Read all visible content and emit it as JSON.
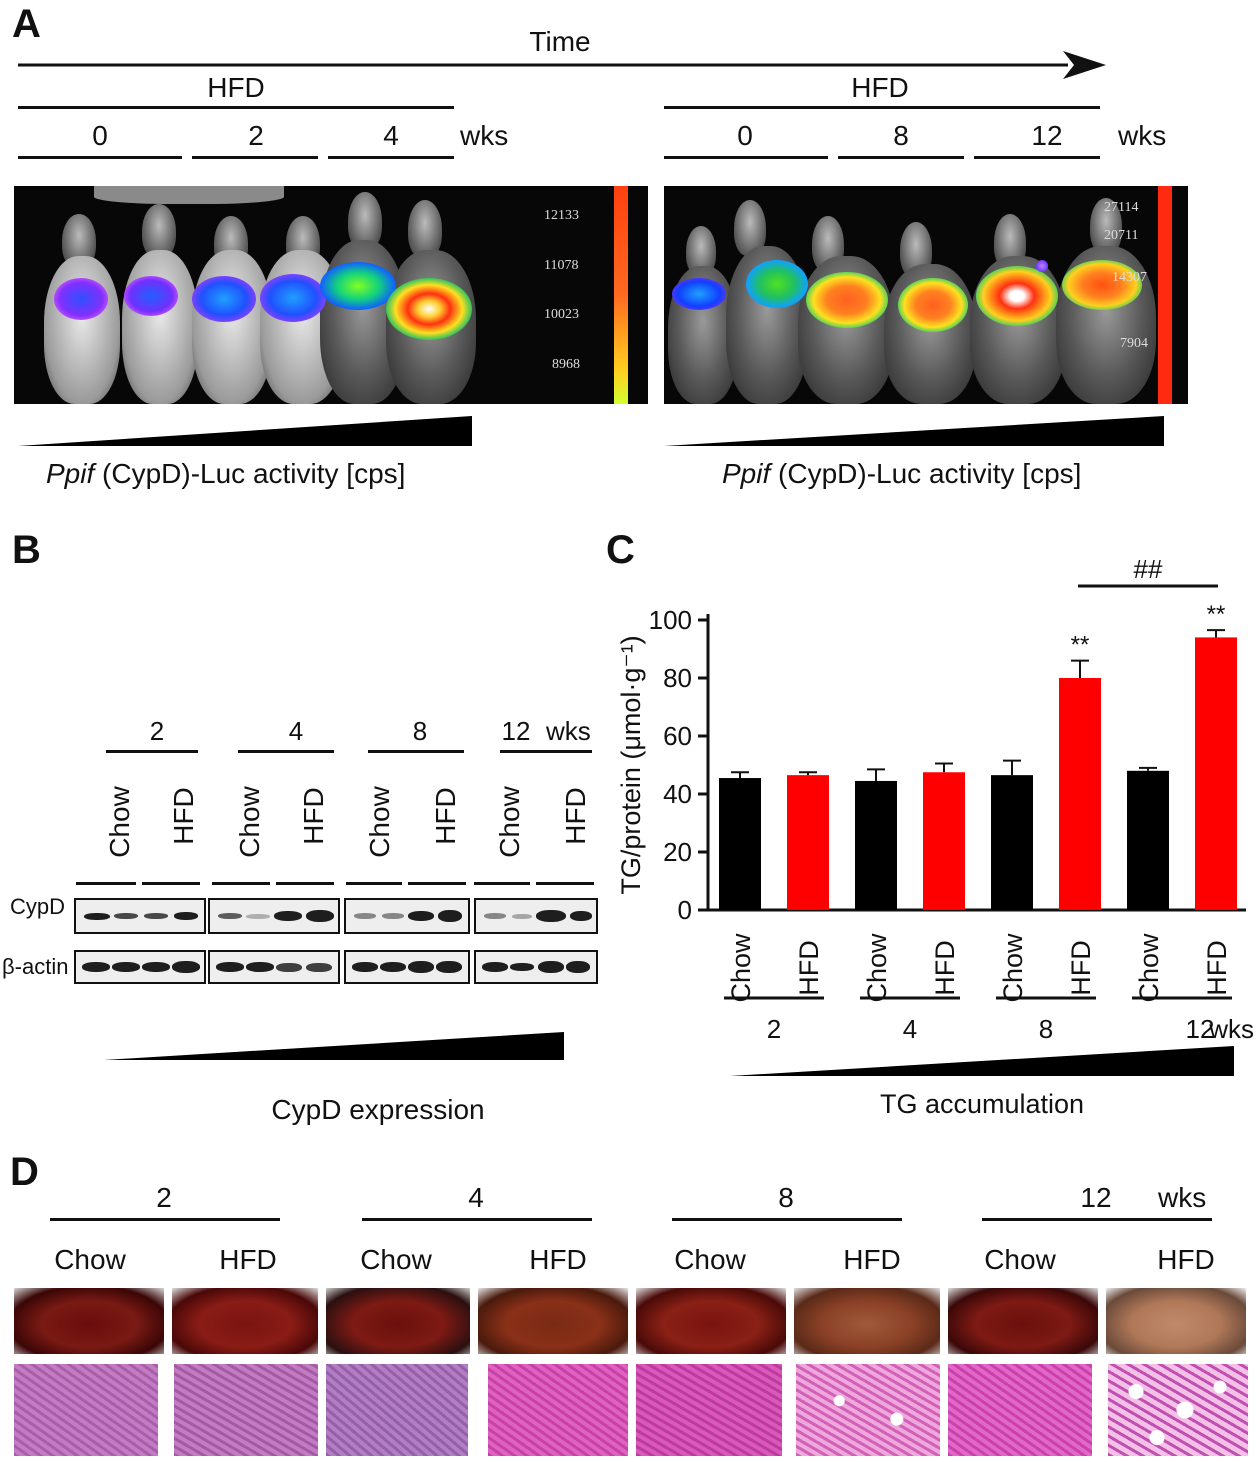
{
  "panels": {
    "a": "A",
    "b": "B",
    "c": "C",
    "d": "D"
  },
  "panel_a": {
    "time_label": "Time",
    "left": {
      "diet": "HFD",
      "weeks": [
        "0",
        "2",
        "4"
      ],
      "unit": "wks",
      "scale": [
        "12133",
        "11078",
        "10023",
        "8968"
      ]
    },
    "right": {
      "diet": "HFD",
      "weeks": [
        "0",
        "8",
        "12"
      ],
      "unit": "wks",
      "scale": [
        "27114",
        "20711",
        "14307",
        "7904"
      ]
    },
    "caption_gene": "Ppif",
    "caption_rest": " (CypD)-Luc activity [cps]"
  },
  "panel_b": {
    "weeks": [
      "2",
      "4",
      "8",
      "12"
    ],
    "unit": "wks",
    "groups": [
      "Chow",
      "HFD"
    ],
    "row_labels": {
      "target": "CypD",
      "control": "β-actin"
    },
    "wedge_label": "CypD expression"
  },
  "panel_d": {
    "weeks": [
      "2",
      "4",
      "8",
      "12"
    ],
    "unit": "wks",
    "groups": [
      "Chow",
      "HFD"
    ]
  },
  "chart_data": {
    "type": "bar",
    "ylabel": "TG/protein (μmol·g⁻¹)",
    "ylim": [
      0,
      100
    ],
    "yticks": [
      0,
      20,
      40,
      60,
      80,
      100
    ],
    "categories": [
      "Chow",
      "HFD",
      "Chow",
      "HFD",
      "Chow",
      "HFD",
      "Chow",
      "HFD"
    ],
    "weeks": [
      "2",
      "4",
      "8",
      "12"
    ],
    "unit": "wks",
    "values": [
      45.5,
      46.5,
      44.5,
      47.5,
      46.5,
      80,
      48,
      94
    ],
    "errors": [
      2,
      1,
      4,
      3,
      5,
      6,
      1,
      2.5
    ],
    "colors": {
      "Chow": "#000000",
      "HFD": "#ff0000"
    },
    "significance": [
      "",
      "",
      "",
      "",
      "",
      "**",
      "",
      "**"
    ],
    "bracket_label": "##",
    "wedge_label": "TG accumulation"
  }
}
